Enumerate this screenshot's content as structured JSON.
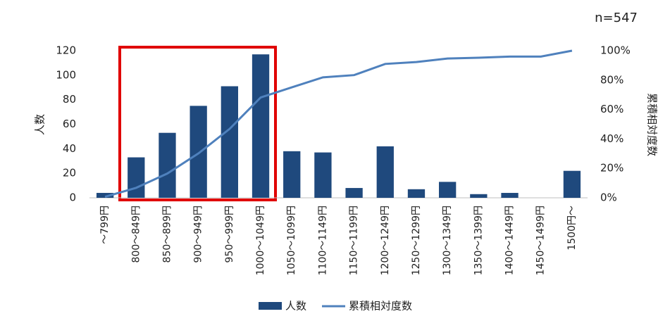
{
  "chart_data": {
    "type": "bar_line",
    "annotation": "n=547",
    "y_label": "人数",
    "y2_label": "累積相対度数",
    "categories": [
      "～799円",
      "800～849円",
      "850～899円",
      "900～949円",
      "950～999円",
      "1000～1049円",
      "1050～1099円",
      "1100～1149円",
      "1150～1199円",
      "1200～1249円",
      "1250～1299円",
      "1300～1349円",
      "1350～1399円",
      "1400～1449円",
      "1450～1499円",
      "1500円～"
    ],
    "series": [
      {
        "name": "人数",
        "type": "bar",
        "color": "#1f497d",
        "values": [
          4,
          33,
          53,
          75,
          91,
          117,
          38,
          37,
          8,
          42,
          7,
          13,
          3,
          4,
          0,
          22
        ]
      },
      {
        "name": "累積相対度数",
        "type": "line",
        "axis": "y2",
        "color": "#4f81bd",
        "values": [
          0.7,
          6.8,
          16.5,
          30.2,
          46.8,
          68.2,
          75.1,
          81.9,
          83.4,
          91.0,
          92.3,
          94.7,
          95.2,
          96.0,
          96.0,
          100
        ]
      }
    ],
    "ylim": [
      0,
      120
    ],
    "yticks": [
      0,
      20,
      40,
      60,
      80,
      100,
      120
    ],
    "y2lim": [
      0,
      100
    ],
    "y2ticks": [
      {
        "value": 0,
        "label": "0%"
      },
      {
        "value": 20,
        "label": "20%"
      },
      {
        "value": 40,
        "label": "40%"
      },
      {
        "value": 60,
        "label": "60%"
      },
      {
        "value": 80,
        "label": "80%"
      },
      {
        "value": 100,
        "label": "100%"
      }
    ],
    "legend": "bottom"
  }
}
